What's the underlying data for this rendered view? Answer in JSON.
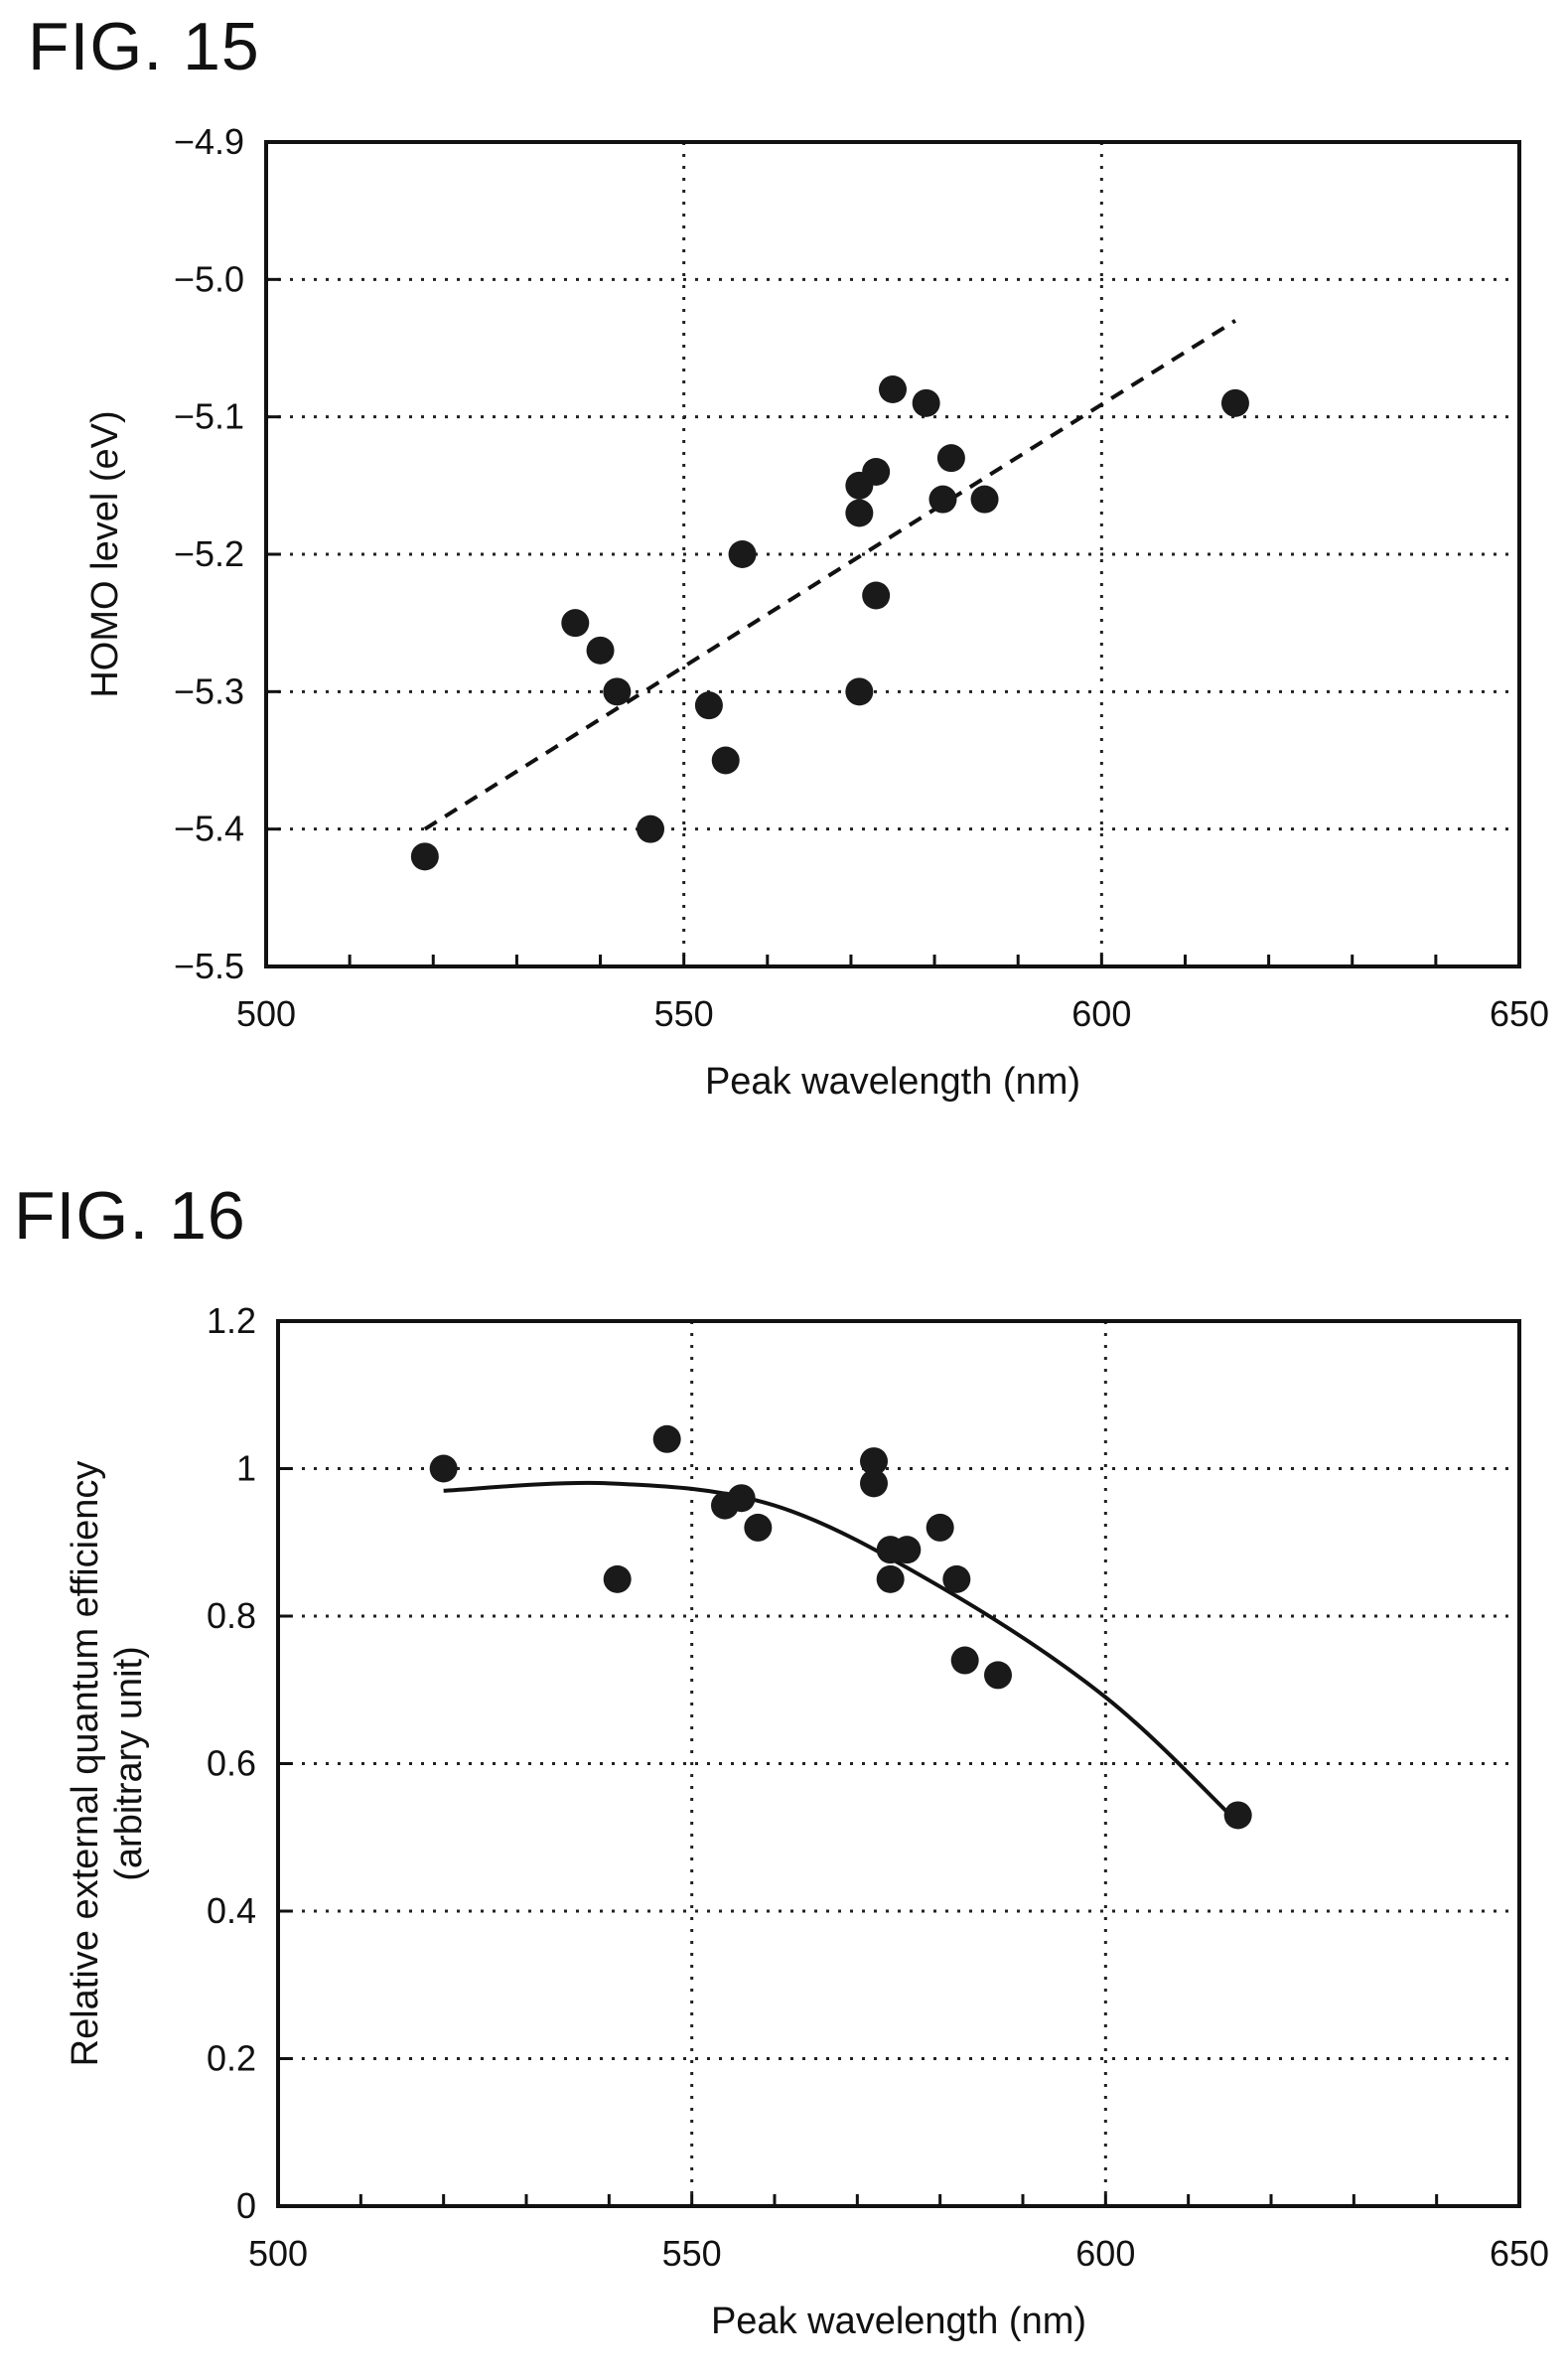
{
  "figures": {
    "fig15_title": "FIG. 15",
    "fig16_title": "FIG. 16"
  },
  "chart_data": [
    {
      "type": "scatter",
      "figure": "FIG. 15",
      "xlabel": "Peak wavelength (nm)",
      "ylabel": "HOMO level (eV)",
      "xlim": [
        500,
        650
      ],
      "ylim": [
        -5.5,
        -4.9
      ],
      "x_ticks": [
        500,
        550,
        600,
        650
      ],
      "y_ticks": [
        -4.9,
        -5.0,
        -5.1,
        -5.2,
        -5.3,
        -5.4,
        -5.5
      ],
      "x_tick_labels": [
        "500",
        "550",
        "600",
        "650"
      ],
      "y_tick_labels": [
        "-4.9",
        "-5.0",
        "-5.1",
        "-5.2",
        "-5.3",
        "-5.4",
        "-5.5"
      ],
      "grid": "dotted at labeled ticks",
      "series": [
        {
          "points": [
            [
              519,
              -5.42
            ],
            [
              537,
              -5.25
            ],
            [
              540,
              -5.27
            ],
            [
              542,
              -5.3
            ],
            [
              546,
              -5.4
            ],
            [
              553,
              -5.31
            ],
            [
              555,
              -5.35
            ],
            [
              557,
              -5.2
            ],
            [
              571,
              -5.3
            ],
            [
              571,
              -5.17
            ],
            [
              571,
              -5.15
            ],
            [
              573,
              -5.14
            ],
            [
              573,
              -5.23
            ],
            [
              575,
              -5.08
            ],
            [
              579,
              -5.09
            ],
            [
              581,
              -5.16
            ],
            [
              582,
              -5.13
            ],
            [
              586,
              -5.16
            ],
            [
              616,
              -5.09
            ]
          ]
        }
      ],
      "trendline": {
        "style": "dashed",
        "from": [
          519,
          -5.4
        ],
        "to": [
          616,
          -5.03
        ]
      }
    },
    {
      "type": "scatter",
      "figure": "FIG. 16",
      "xlabel": "Peak wavelength (nm)",
      "ylabel": "Relative external quantum efficiency",
      "ylabel2": "(arbitrary unit)",
      "xlim": [
        500,
        650
      ],
      "ylim": [
        0,
        1.2
      ],
      "x_ticks": [
        500,
        550,
        600,
        650
      ],
      "y_ticks": [
        0,
        0.2,
        0.4,
        0.6,
        0.8,
        1,
        1.2
      ],
      "x_tick_labels": [
        "500",
        "550",
        "600",
        "650"
      ],
      "y_tick_labels": [
        "0",
        "0.2",
        "0.4",
        "0.6",
        "0.8",
        "1",
        "1.2"
      ],
      "grid": "dotted at labeled ticks",
      "series": [
        {
          "points": [
            [
              520,
              1.0
            ],
            [
              541,
              0.85
            ],
            [
              547,
              1.04
            ],
            [
              554,
              0.95
            ],
            [
              556,
              0.96
            ],
            [
              558,
              0.92
            ],
            [
              572,
              1.01
            ],
            [
              572,
              0.98
            ],
            [
              574,
              0.89
            ],
            [
              574,
              0.85
            ],
            [
              576,
              0.89
            ],
            [
              580,
              0.92
            ],
            [
              582,
              0.85
            ],
            [
              583,
              0.74
            ],
            [
              587,
              0.72
            ],
            [
              616,
              0.53
            ]
          ]
        }
      ],
      "trendline": {
        "style": "solid curve",
        "points": [
          [
            520,
            0.97
          ],
          [
            540,
            0.98
          ],
          [
            560,
            0.95
          ],
          [
            580,
            0.84
          ],
          [
            600,
            0.69
          ],
          [
            616,
            0.52
          ]
        ]
      }
    }
  ]
}
